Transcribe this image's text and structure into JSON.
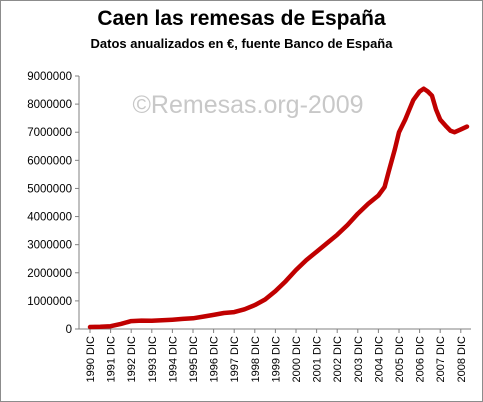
{
  "chart_data": {
    "type": "line",
    "title": "Caen las remesas de España",
    "subtitle": "Datos anualizados en €, fuente Banco de España",
    "watermark": "©Remesas.org-2009",
    "xlabel": "",
    "ylabel": "",
    "ylim": [
      0,
      9000000
    ],
    "y_ticks": [
      0,
      1000000,
      2000000,
      3000000,
      4000000,
      5000000,
      6000000,
      7000000,
      8000000,
      9000000
    ],
    "x_tick_labels": [
      "1990 DIC",
      "1991 DIC",
      "1992 DIC",
      "1993 DIC",
      "1994 DIC",
      "1995 DIC",
      "1996 DIC",
      "1997 DIC",
      "1998 DIC",
      "1999 DIC",
      "2000 DIC",
      "2001 DIC",
      "2002 DIC",
      "2003 DIC",
      "2004 DIC",
      "2005 DIC",
      "2006 DIC",
      "2007 DIC",
      "2008 DIC"
    ],
    "x_range": [
      1990.9,
      2009.5
    ],
    "grid": false,
    "line_color": "#c00000",
    "x": [
      1990.9,
      1991.4,
      1991.9,
      1992.4,
      1992.9,
      1993.4,
      1993.9,
      1994.4,
      1994.9,
      1995.4,
      1995.9,
      1996.4,
      1996.9,
      1997.4,
      1997.9,
      1998.4,
      1998.9,
      1999.4,
      1999.9,
      2000.4,
      2000.9,
      2001.4,
      2001.9,
      2002.4,
      2002.9,
      2003.4,
      2003.9,
      2004.4,
      2004.9,
      2005.2,
      2005.4,
      2005.7,
      2005.9,
      2006.2,
      2006.4,
      2006.6,
      2006.9,
      2007.1,
      2007.3,
      2007.5,
      2007.7,
      2007.9,
      2008.2,
      2008.4,
      2008.6,
      2008.9,
      2009.2
    ],
    "values": [
      70000,
      80000,
      100000,
      180000,
      280000,
      300000,
      290000,
      310000,
      330000,
      360000,
      380000,
      440000,
      500000,
      570000,
      600000,
      700000,
      850000,
      1050000,
      1350000,
      1700000,
      2100000,
      2450000,
      2750000,
      3050000,
      3350000,
      3700000,
      4100000,
      4450000,
      4750000,
      5050000,
      5600000,
      6400000,
      7000000,
      7450000,
      7800000,
      8150000,
      8450000,
      8550000,
      8450000,
      8300000,
      7800000,
      7450000,
      7200000,
      7050000,
      7000000,
      7100000,
      7200000
    ]
  }
}
